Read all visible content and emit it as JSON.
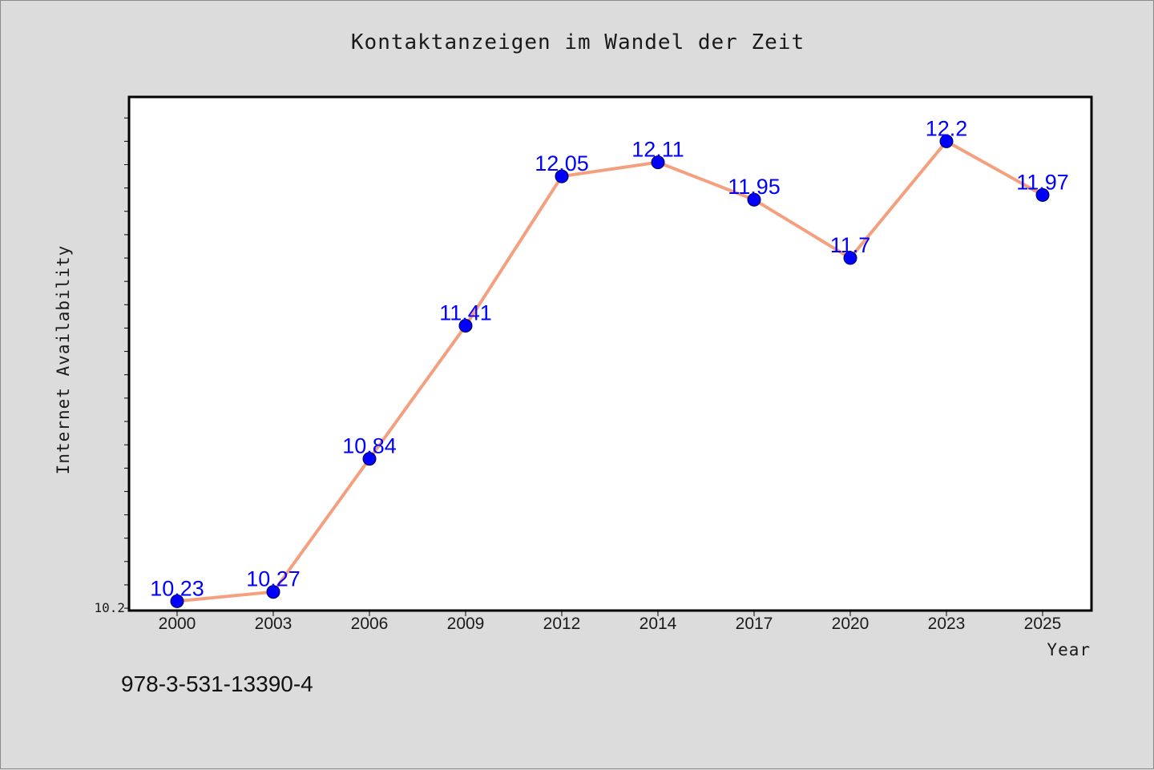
{
  "chart_data": {
    "type": "line",
    "title": "Kontaktanzeigen im Wandel der Zeit",
    "xlabel": "Year",
    "ylabel": "Internet Availability",
    "categories": [
      "2000",
      "2003",
      "2006",
      "2009",
      "2012",
      "2014",
      "2017",
      "2020",
      "2023",
      "2025"
    ],
    "series": [
      {
        "values": [
          10.23,
          10.27,
          10.84,
          11.41,
          12.05,
          12.11,
          11.95,
          11.7,
          12.2,
          11.97
        ],
        "data_labels": [
          "10.23",
          "10.27",
          "10.84",
          "11.41",
          "12.05",
          "12.11",
          "11.95",
          "11.7",
          "12.2",
          "11.97"
        ]
      }
    ],
    "ylim": [
      10.19,
      12.39
    ],
    "y_tick_labels": [
      {
        "value": 10.2,
        "label": "10.2"
      }
    ],
    "grid": false,
    "line_color": "#f4a07f",
    "marker_color": "#0000ff",
    "label_color": "#0000ff"
  },
  "footer": {
    "isbn": "978-3-531-13390-4"
  }
}
